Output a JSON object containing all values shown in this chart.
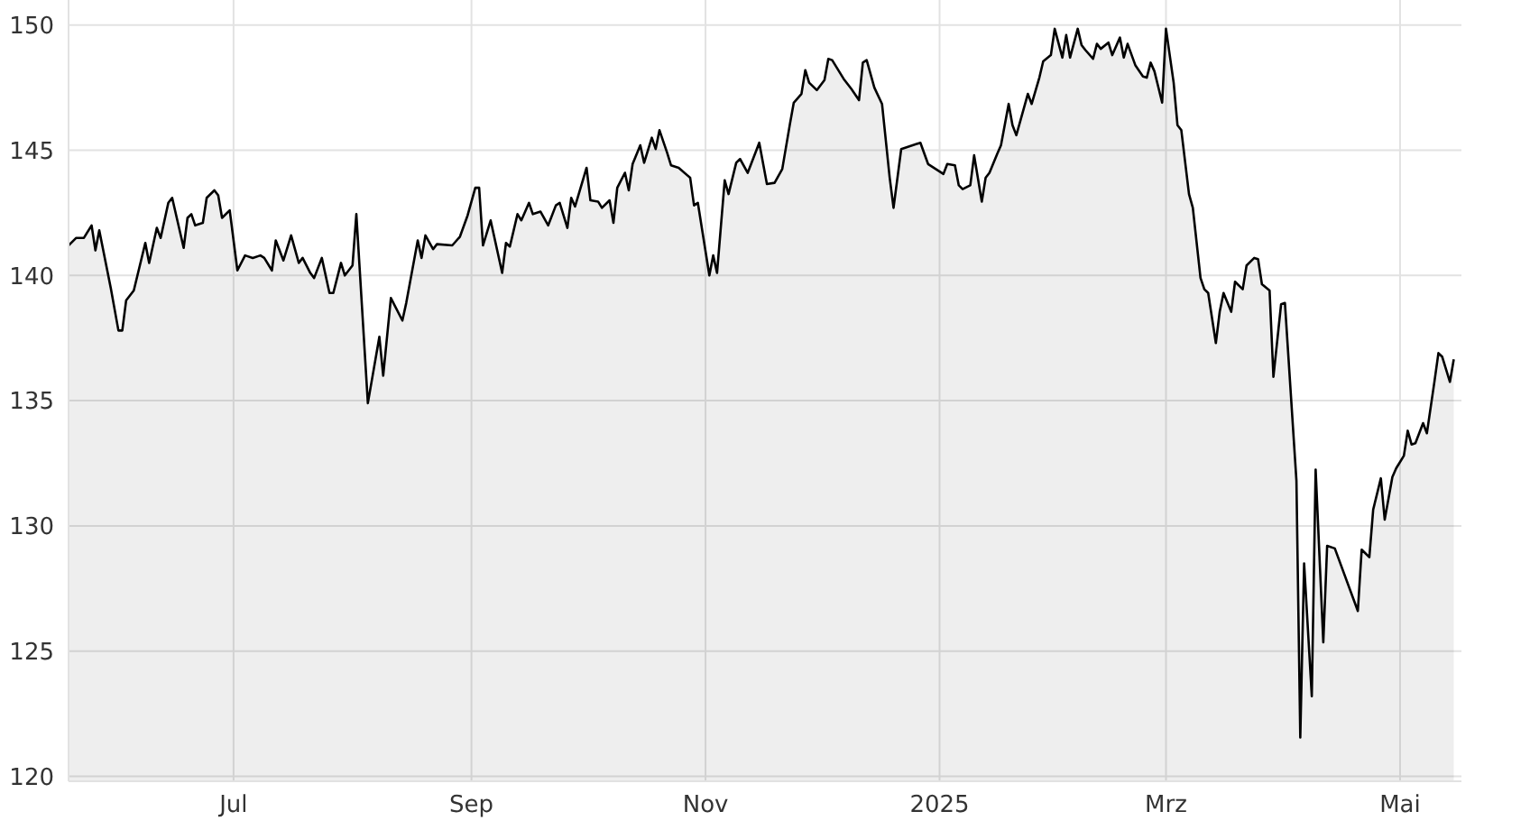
{
  "chart_data": {
    "type": "area",
    "x": [
      "2024-05-19",
      "2024-05-21",
      "2024-05-23",
      "2024-05-25",
      "2024-05-26",
      "2024-05-27",
      "2024-05-30",
      "2024-06-01",
      "2024-06-02",
      "2024-06-03",
      "2024-06-05",
      "2024-06-08",
      "2024-06-09",
      "2024-06-11",
      "2024-06-12",
      "2024-06-14",
      "2024-06-15",
      "2024-06-18",
      "2024-06-19",
      "2024-06-20",
      "2024-06-21",
      "2024-06-23",
      "2024-06-24",
      "2024-06-26",
      "2024-06-27",
      "2024-06-28",
      "2024-06-30",
      "2024-07-02",
      "2024-07-04",
      "2024-07-06",
      "2024-07-08",
      "2024-07-09",
      "2024-07-11",
      "2024-07-12",
      "2024-07-14",
      "2024-07-16",
      "2024-07-18",
      "2024-07-19",
      "2024-07-21",
      "2024-07-22",
      "2024-07-24",
      "2024-07-26",
      "2024-07-27",
      "2024-07-29",
      "2024-07-30",
      "2024-08-01",
      "2024-08-02",
      "2024-08-05",
      "2024-08-08",
      "2024-08-09",
      "2024-08-11",
      "2024-08-14",
      "2024-08-15",
      "2024-08-18",
      "2024-08-19",
      "2024-08-20",
      "2024-08-22",
      "2024-08-23",
      "2024-08-27",
      "2024-08-29",
      "2024-08-31",
      "2024-09-02",
      "2024-09-03",
      "2024-09-04",
      "2024-09-06",
      "2024-09-09",
      "2024-09-10",
      "2024-09-11",
      "2024-09-13",
      "2024-09-14",
      "2024-09-16",
      "2024-09-17",
      "2024-09-19",
      "2024-09-21",
      "2024-09-23",
      "2024-09-24",
      "2024-09-26",
      "2024-09-27",
      "2024-09-28",
      "2024-10-01",
      "2024-10-02",
      "2024-10-04",
      "2024-10-05",
      "2024-10-07",
      "2024-10-08",
      "2024-10-09",
      "2024-10-11",
      "2024-10-12",
      "2024-10-13",
      "2024-10-15",
      "2024-10-16",
      "2024-10-18",
      "2024-10-19",
      "2024-10-20",
      "2024-10-22",
      "2024-10-23",
      "2024-10-25",
      "2024-10-28",
      "2024-10-29",
      "2024-10-30",
      "2024-11-02",
      "2024-11-03",
      "2024-11-04",
      "2024-11-06",
      "2024-11-07",
      "2024-11-09",
      "2024-11-10",
      "2024-11-12",
      "2024-11-15",
      "2024-11-17",
      "2024-11-19",
      "2024-11-21",
      "2024-11-23",
      "2024-11-24",
      "2024-11-26",
      "2024-11-27",
      "2024-11-28",
      "2024-11-30",
      "2024-12-02",
      "2024-12-03",
      "2024-12-04",
      "2024-12-07",
      "2024-12-09",
      "2024-12-11",
      "2024-12-12",
      "2024-12-13",
      "2024-12-15",
      "2024-12-17",
      "2024-12-19",
      "2024-12-20",
      "2024-12-22",
      "2024-12-27",
      "2024-12-29",
      "2025-01-02",
      "2025-01-03",
      "2025-01-05",
      "2025-01-06",
      "2025-01-07",
      "2025-01-09",
      "2025-01-10",
      "2025-01-12",
      "2025-01-13",
      "2025-01-14",
      "2025-01-16",
      "2025-01-17",
      "2025-01-19",
      "2025-01-20",
      "2025-01-21",
      "2025-01-23",
      "2025-01-24",
      "2025-01-25",
      "2025-01-27",
      "2025-01-28",
      "2025-01-30",
      "2025-01-31",
      "2025-02-02",
      "2025-02-03",
      "2025-02-04",
      "2025-02-06",
      "2025-02-07",
      "2025-02-08",
      "2025-02-10",
      "2025-02-11",
      "2025-02-12",
      "2025-02-14",
      "2025-02-15",
      "2025-02-17",
      "2025-02-18",
      "2025-02-19",
      "2025-02-21",
      "2025-02-23",
      "2025-02-24",
      "2025-02-25",
      "2025-02-26",
      "2025-02-28",
      "2025-03-01",
      "2025-03-03",
      "2025-03-04",
      "2025-03-05",
      "2025-03-07",
      "2025-03-08",
      "2025-03-10",
      "2025-03-11",
      "2025-03-12",
      "2025-03-14",
      "2025-03-15",
      "2025-03-16",
      "2025-03-18",
      "2025-03-19",
      "2025-03-21",
      "2025-03-22",
      "2025-03-24",
      "2025-03-25",
      "2025-03-26",
      "2025-03-28",
      "2025-03-29",
      "2025-03-31",
      "2025-04-01",
      "2025-04-04",
      "2025-04-05",
      "2025-04-06",
      "2025-04-08",
      "2025-04-09",
      "2025-04-11",
      "2025-04-12",
      "2025-04-14",
      "2025-04-20",
      "2025-04-21",
      "2025-04-23",
      "2025-04-24",
      "2025-04-26",
      "2025-04-27",
      "2025-04-29",
      "2025-04-30",
      "2025-05-02",
      "2025-05-03",
      "2025-05-04",
      "2025-05-05",
      "2025-05-07",
      "2025-05-08",
      "2025-05-10",
      "2025-05-11",
      "2025-05-12",
      "2025-05-14",
      "2025-05-15"
    ],
    "series": [
      {
        "color": "#000000",
        "values": [
          141.2,
          141.5,
          141.5,
          142.0,
          141.0,
          141.8,
          139.5,
          137.8,
          137.8,
          139.0,
          139.4,
          141.3,
          140.5,
          141.9,
          141.5,
          142.9,
          143.1,
          141.1,
          142.3,
          142.45,
          142.0,
          142.1,
          143.1,
          143.4,
          143.2,
          142.3,
          142.6,
          140.2,
          140.8,
          140.7,
          140.8,
          140.7,
          140.2,
          141.4,
          140.6,
          141.6,
          140.5,
          140.7,
          140.1,
          139.9,
          140.7,
          139.3,
          139.3,
          140.5,
          140.0,
          140.4,
          142.45,
          134.9,
          137.55,
          136.0,
          139.1,
          138.2,
          138.9,
          141.4,
          140.7,
          141.6,
          141.05,
          141.25,
          141.2,
          141.55,
          142.4,
          143.5,
          143.5,
          141.2,
          142.2,
          140.1,
          141.3,
          141.15,
          142.45,
          142.2,
          142.9,
          142.45,
          142.55,
          142.0,
          142.8,
          142.9,
          141.9,
          143.1,
          142.75,
          144.3,
          143.0,
          142.95,
          142.7,
          143.0,
          142.1,
          143.5,
          144.1,
          143.4,
          144.45,
          145.2,
          144.5,
          145.5,
          145.05,
          145.8,
          144.9,
          144.4,
          144.3,
          143.9,
          142.8,
          142.9,
          140.0,
          140.8,
          140.1,
          143.8,
          143.25,
          144.5,
          144.65,
          144.1,
          145.3,
          143.65,
          143.7,
          144.25,
          146.05,
          146.9,
          147.25,
          148.2,
          147.7,
          147.4,
          147.8,
          148.65,
          148.6,
          147.85,
          147.45,
          147.0,
          148.5,
          148.6,
          147.5,
          146.85,
          143.9,
          142.7,
          145.05,
          145.3,
          144.45,
          144.05,
          144.45,
          144.4,
          143.6,
          143.45,
          143.6,
          144.8,
          142.95,
          143.9,
          144.1,
          144.85,
          145.2,
          146.85,
          146.0,
          145.6,
          146.7,
          147.25,
          146.85,
          147.9,
          148.55,
          148.8,
          149.85,
          148.7,
          149.6,
          148.7,
          149.85,
          149.2,
          149.0,
          148.65,
          149.25,
          149.05,
          149.3,
          148.8,
          149.5,
          148.7,
          149.25,
          148.4,
          147.95,
          147.9,
          148.5,
          148.15,
          146.9,
          149.85,
          147.7,
          146.0,
          145.8,
          143.25,
          142.7,
          139.9,
          139.45,
          139.3,
          137.3,
          138.55,
          139.3,
          138.55,
          139.75,
          139.45,
          140.4,
          140.7,
          140.65,
          139.65,
          139.4,
          135.95,
          138.85,
          138.9,
          131.8,
          121.55,
          128.5,
          123.2,
          132.25,
          125.35,
          129.2,
          129.1,
          126.6,
          129.05,
          128.75,
          130.65,
          131.9,
          130.25,
          131.95,
          132.3,
          132.8,
          133.8,
          133.25,
          133.3,
          134.1,
          133.7,
          135.8,
          136.9,
          136.75,
          135.75,
          136.65
        ]
      }
    ],
    "xlim": [
      "2024-05-19",
      "2025-05-17"
    ],
    "xticks": [
      {
        "value": "2024-07-01",
        "label": "Jul"
      },
      {
        "value": "2024-09-01",
        "label": "Sep"
      },
      {
        "value": "2024-11-01",
        "label": "Nov"
      },
      {
        "value": "2025-01-01",
        "label": "2025"
      },
      {
        "value": "2025-03-01",
        "label": "Mrz"
      },
      {
        "value": "2025-05-01",
        "label": "Mai"
      }
    ],
    "ylim": [
      119.8,
      151
    ],
    "yticks": [
      120,
      125,
      130,
      135,
      140,
      145,
      150
    ],
    "grid": true,
    "legend": false,
    "marker": "none",
    "line_style": "solid"
  }
}
